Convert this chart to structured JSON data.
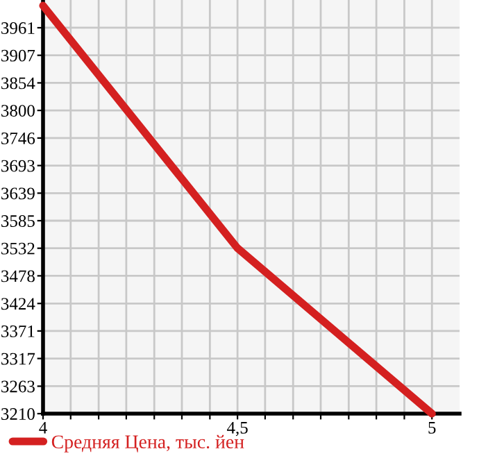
{
  "chart_data": {
    "type": "line",
    "x": [
      4,
      4.5,
      5
    ],
    "series": [
      {
        "name": "Средняя Цена, тыс. йен",
        "color": "#d42020",
        "values": [
          4004,
          3532,
          3210
        ]
      }
    ],
    "xlim": [
      4,
      5.071
    ],
    "ylim": [
      3210,
      4015
    ],
    "xticks": [
      {
        "value": 4,
        "label": "4"
      },
      {
        "value": 4.071,
        "label": null
      },
      {
        "value": 4.143,
        "label": null
      },
      {
        "value": 4.214,
        "label": null
      },
      {
        "value": 4.286,
        "label": null
      },
      {
        "value": 4.357,
        "label": null
      },
      {
        "value": 4.429,
        "label": null
      },
      {
        "value": 4.5,
        "label": "4,5"
      },
      {
        "value": 4.571,
        "label": null
      },
      {
        "value": 4.643,
        "label": null
      },
      {
        "value": 4.714,
        "label": null
      },
      {
        "value": 4.786,
        "label": null
      },
      {
        "value": 4.857,
        "label": null
      },
      {
        "value": 4.929,
        "label": null
      },
      {
        "value": 5,
        "label": "5"
      }
    ],
    "yticks": [
      {
        "value": 3210,
        "label": "3210"
      },
      {
        "value": 3263.4,
        "label": "3263"
      },
      {
        "value": 3317.3,
        "label": "3317"
      },
      {
        "value": 3370.9,
        "label": "3371"
      },
      {
        "value": 3424.4,
        "label": "3424"
      },
      {
        "value": 3478.2,
        "label": "3478"
      },
      {
        "value": 3531.9,
        "label": "3532"
      },
      {
        "value": 3585.5,
        "label": "3585"
      },
      {
        "value": 3639.1,
        "label": "3639"
      },
      {
        "value": 3692.8,
        "label": "3693"
      },
      {
        "value": 3746.4,
        "label": "3746"
      },
      {
        "value": 3800.1,
        "label": "3800"
      },
      {
        "value": 3853.7,
        "label": "3854"
      },
      {
        "value": 3907.4,
        "label": "3907"
      },
      {
        "value": 3961,
        "label": "3961"
      }
    ],
    "grid": true,
    "legend": "bottom left",
    "marker": "none",
    "line_style": "solid"
  }
}
